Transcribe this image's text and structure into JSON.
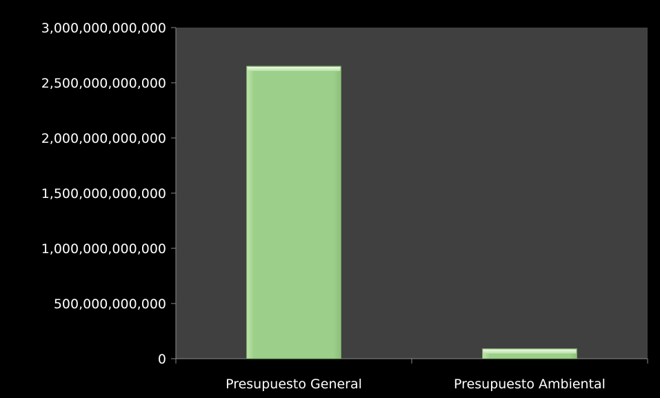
{
  "chart_data": {
    "type": "bar",
    "title": "",
    "xlabel": "",
    "ylabel": "",
    "categories": [
      "Presupuesto General",
      "Presupuesto Ambiental"
    ],
    "values": [
      2650000000000,
      90000000000
    ],
    "ylim": [
      0,
      3000000000000
    ],
    "yticks": [
      0,
      500000000000,
      1000000000000,
      1500000000000,
      2000000000000,
      2500000000000,
      3000000000000
    ],
    "ytick_labels": [
      "0",
      "500,000,000,000",
      "1,000,000,000,000",
      "1,500,000,000,000",
      "2,000,000,000,000",
      "2,500,000,000,000",
      "3,000,000,000,000"
    ],
    "grid": false,
    "legend": "none",
    "colors": {
      "background": "#000000",
      "plot_area": "#404040",
      "bar_fill": "#9ccf8a",
      "bar_highlight": "#dff3cf",
      "axis": "#8c8c8c",
      "text": "#ffffff"
    }
  }
}
